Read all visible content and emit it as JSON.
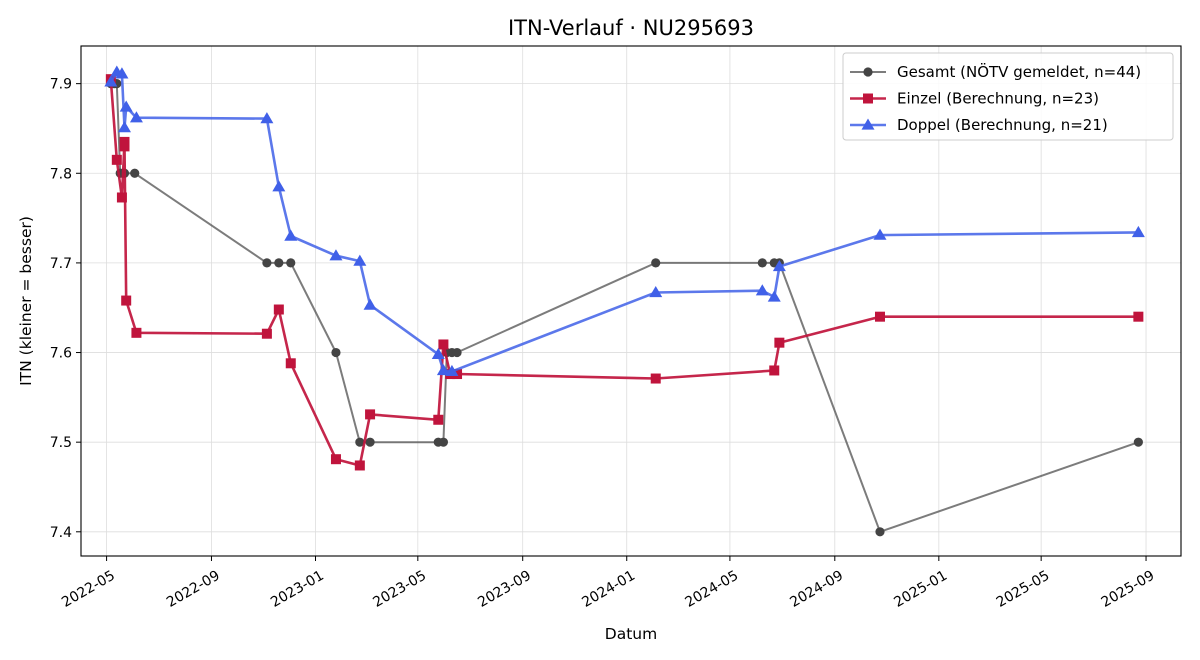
{
  "chart_data": {
    "type": "line",
    "title": "ITN-Verlauf · NU295693",
    "xlabel": "Datum",
    "ylabel": "ITN  (kleiner = besser)",
    "x_axis_type": "date",
    "xlim": [
      "2022-04-01",
      "2025-10-12"
    ],
    "ylim": [
      7.373,
      7.942
    ],
    "x_ticks": [
      {
        "date": "2022-05-01",
        "label": "2022-05"
      },
      {
        "date": "2022-09-01",
        "label": "2022-09"
      },
      {
        "date": "2023-01-01",
        "label": "2023-01"
      },
      {
        "date": "2023-05-01",
        "label": "2023-05"
      },
      {
        "date": "2023-09-01",
        "label": "2023-09"
      },
      {
        "date": "2024-01-01",
        "label": "2024-01"
      },
      {
        "date": "2024-05-01",
        "label": "2024-05"
      },
      {
        "date": "2024-09-01",
        "label": "2024-09"
      },
      {
        "date": "2025-01-01",
        "label": "2025-01"
      },
      {
        "date": "2025-05-01",
        "label": "2025-05"
      },
      {
        "date": "2025-09-01",
        "label": "2025-09"
      }
    ],
    "y_ticks": [
      {
        "value": 7.4,
        "label": "7.4"
      },
      {
        "value": 7.5,
        "label": "7.5"
      },
      {
        "value": 7.6,
        "label": "7.6"
      },
      {
        "value": 7.7,
        "label": "7.7"
      },
      {
        "value": 7.8,
        "label": "7.8"
      },
      {
        "value": 7.9,
        "label": "7.9"
      }
    ],
    "grid": true,
    "legend_position": "top-right",
    "series": [
      {
        "name": "Gesamt (NÖTV gemeldet, n=44)",
        "color": "#444444",
        "marker": "circle",
        "line_opacity": 0.7,
        "points": [
          {
            "x": "2022-05-06",
            "y": 7.9
          },
          {
            "x": "2022-05-10",
            "y": 7.9
          },
          {
            "x": "2022-05-13",
            "y": 7.9
          },
          {
            "x": "2022-05-17",
            "y": 7.8
          },
          {
            "x": "2022-05-20",
            "y": 7.8
          },
          {
            "x": "2022-05-22",
            "y": 7.8
          },
          {
            "x": "2022-06-03",
            "y": 7.8
          },
          {
            "x": "2022-11-05",
            "y": 7.7
          },
          {
            "x": "2022-11-19",
            "y": 7.7
          },
          {
            "x": "2022-12-03",
            "y": 7.7
          },
          {
            "x": "2023-01-25",
            "y": 7.6
          },
          {
            "x": "2023-02-22",
            "y": 7.5
          },
          {
            "x": "2023-03-06",
            "y": 7.5
          },
          {
            "x": "2023-05-25",
            "y": 7.5
          },
          {
            "x": "2023-05-31",
            "y": 7.5
          },
          {
            "x": "2023-06-04",
            "y": 7.6
          },
          {
            "x": "2023-06-10",
            "y": 7.6
          },
          {
            "x": "2023-06-16",
            "y": 7.6
          },
          {
            "x": "2024-02-04",
            "y": 7.7
          },
          {
            "x": "2024-06-08",
            "y": 7.7
          },
          {
            "x": "2024-06-22",
            "y": 7.7
          },
          {
            "x": "2024-06-28",
            "y": 7.7
          },
          {
            "x": "2024-10-24",
            "y": 7.4
          },
          {
            "x": "2025-08-23",
            "y": 7.5
          }
        ]
      },
      {
        "name": "Einzel (Berechnung, n=23)",
        "color": "#c0143c",
        "marker": "square",
        "line_opacity": 0.92,
        "points": [
          {
            "x": "2022-05-06",
            "y": 7.905
          },
          {
            "x": "2022-05-13",
            "y": 7.815
          },
          {
            "x": "2022-05-19",
            "y": 7.773
          },
          {
            "x": "2022-05-22",
            "y": 7.835
          },
          {
            "x": "2022-05-22",
            "y": 7.83
          },
          {
            "x": "2022-05-24",
            "y": 7.658
          },
          {
            "x": "2022-06-05",
            "y": 7.622
          },
          {
            "x": "2022-11-05",
            "y": 7.621
          },
          {
            "x": "2022-11-19",
            "y": 7.648
          },
          {
            "x": "2022-12-03",
            "y": 7.588
          },
          {
            "x": "2023-01-25",
            "y": 7.481
          },
          {
            "x": "2023-02-22",
            "y": 7.474
          },
          {
            "x": "2023-03-06",
            "y": 7.531
          },
          {
            "x": "2023-05-25",
            "y": 7.525
          },
          {
            "x": "2023-05-31",
            "y": 7.609
          },
          {
            "x": "2023-06-08",
            "y": 7.576
          },
          {
            "x": "2023-06-16",
            "y": 7.576
          },
          {
            "x": "2024-02-04",
            "y": 7.571
          },
          {
            "x": "2024-06-22",
            "y": 7.58
          },
          {
            "x": "2024-06-28",
            "y": 7.611
          },
          {
            "x": "2024-10-24",
            "y": 7.64
          },
          {
            "x": "2025-08-23",
            "y": 7.64
          }
        ]
      },
      {
        "name": "Doppel (Berechnung, n=21)",
        "color": "#4060e8",
        "marker": "triangle",
        "line_opacity": 0.85,
        "points": [
          {
            "x": "2022-05-06",
            "y": 7.902
          },
          {
            "x": "2022-05-13",
            "y": 7.913
          },
          {
            "x": "2022-05-19",
            "y": 7.911
          },
          {
            "x": "2022-05-22",
            "y": 7.851
          },
          {
            "x": "2022-05-24",
            "y": 7.874
          },
          {
            "x": "2022-06-05",
            "y": 7.862
          },
          {
            "x": "2022-11-05",
            "y": 7.861
          },
          {
            "x": "2022-11-19",
            "y": 7.785
          },
          {
            "x": "2022-12-03",
            "y": 7.73
          },
          {
            "x": "2023-01-25",
            "y": 7.708
          },
          {
            "x": "2023-02-22",
            "y": 7.702
          },
          {
            "x": "2023-03-06",
            "y": 7.653
          },
          {
            "x": "2023-05-25",
            "y": 7.598
          },
          {
            "x": "2023-05-31",
            "y": 7.58
          },
          {
            "x": "2023-06-10",
            "y": 7.579
          },
          {
            "x": "2024-02-04",
            "y": 7.667
          },
          {
            "x": "2024-06-08",
            "y": 7.669
          },
          {
            "x": "2024-06-22",
            "y": 7.662
          },
          {
            "x": "2024-06-28",
            "y": 7.696
          },
          {
            "x": "2024-10-24",
            "y": 7.731
          },
          {
            "x": "2025-08-23",
            "y": 7.734
          }
        ]
      }
    ]
  }
}
